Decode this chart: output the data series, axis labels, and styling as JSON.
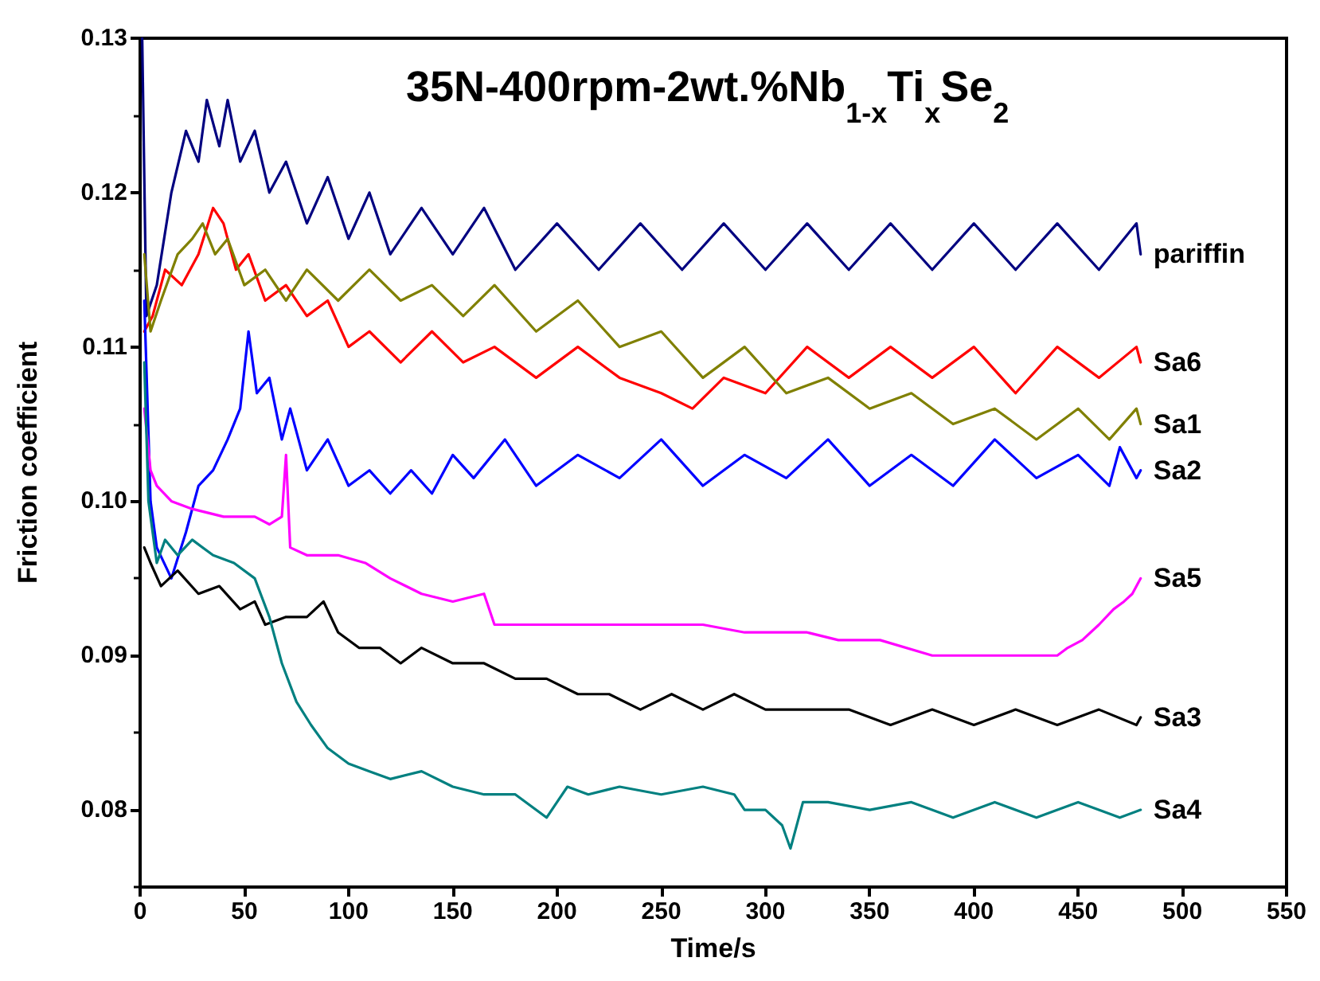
{
  "chart_data": {
    "type": "line",
    "title": "35N-400rpm-2wt.%Nb$_{1-x}$Ti$_{x}$Se$_{2}$",
    "xlabel": "Time/s",
    "ylabel": "Friction coefficient",
    "xlim": [
      0,
      550
    ],
    "xticks": [
      0,
      50,
      100,
      150,
      200,
      250,
      300,
      350,
      400,
      450,
      500,
      550
    ],
    "ylim": [
      0.075,
      0.13
    ],
    "yticks": [
      {
        "value": 0.08,
        "label": "0.08"
      },
      {
        "value": 0.09,
        "label": "0.09"
      },
      {
        "value": 0.1,
        "label": "0.10"
      },
      {
        "value": 0.11,
        "label": "0.11"
      },
      {
        "value": 0.12,
        "label": "0.12"
      },
      {
        "value": 0.13,
        "label": "0.13"
      }
    ],
    "grid": false,
    "legend": false,
    "line_style": "solid",
    "series": [
      {
        "name": "pariffin",
        "color": "#000080",
        "x": [
          1,
          3,
          8,
          15,
          22,
          28,
          32,
          38,
          42,
          48,
          55,
          62,
          70,
          80,
          90,
          100,
          110,
          120,
          135,
          150,
          165,
          180,
          200,
          220,
          240,
          260,
          280,
          300,
          320,
          340,
          360,
          380,
          400,
          420,
          440,
          460,
          478,
          480
        ],
        "values": [
          0.13,
          0.112,
          0.114,
          0.12,
          0.124,
          0.122,
          0.126,
          0.123,
          0.126,
          0.122,
          0.124,
          0.12,
          0.122,
          0.118,
          0.121,
          0.117,
          0.12,
          0.116,
          0.119,
          0.116,
          0.119,
          0.115,
          0.118,
          0.115,
          0.118,
          0.115,
          0.118,
          0.115,
          0.118,
          0.115,
          0.118,
          0.115,
          0.118,
          0.115,
          0.118,
          0.115,
          0.118,
          0.116
        ]
      },
      {
        "name": "Sa6",
        "color": "#ff0000",
        "x": [
          2,
          6,
          12,
          20,
          28,
          35,
          40,
          46,
          52,
          60,
          70,
          80,
          90,
          100,
          110,
          125,
          140,
          155,
          170,
          190,
          210,
          230,
          250,
          265,
          280,
          300,
          320,
          340,
          360,
          380,
          400,
          420,
          440,
          460,
          478,
          480
        ],
        "values": [
          0.111,
          0.112,
          0.115,
          0.114,
          0.116,
          0.119,
          0.118,
          0.115,
          0.116,
          0.113,
          0.114,
          0.112,
          0.113,
          0.11,
          0.111,
          0.109,
          0.111,
          0.109,
          0.11,
          0.108,
          0.11,
          0.108,
          0.107,
          0.106,
          0.108,
          0.107,
          0.11,
          0.108,
          0.11,
          0.108,
          0.11,
          0.107,
          0.11,
          0.108,
          0.11,
          0.109
        ]
      },
      {
        "name": "Sa1",
        "color": "#808000",
        "x": [
          2,
          5,
          10,
          18,
          25,
          30,
          36,
          42,
          50,
          60,
          70,
          80,
          95,
          110,
          125,
          140,
          155,
          170,
          190,
          210,
          230,
          250,
          270,
          290,
          310,
          330,
          350,
          370,
          390,
          410,
          430,
          450,
          465,
          478,
          480
        ],
        "values": [
          0.116,
          0.111,
          0.113,
          0.116,
          0.117,
          0.118,
          0.116,
          0.117,
          0.114,
          0.115,
          0.113,
          0.115,
          0.113,
          0.115,
          0.113,
          0.114,
          0.112,
          0.114,
          0.111,
          0.113,
          0.11,
          0.111,
          0.108,
          0.11,
          0.107,
          0.108,
          0.106,
          0.107,
          0.105,
          0.106,
          0.104,
          0.106,
          0.104,
          0.106,
          0.105
        ]
      },
      {
        "name": "Sa2",
        "color": "#0000ff",
        "x": [
          2,
          5,
          8,
          15,
          22,
          28,
          35,
          42,
          48,
          52,
          56,
          62,
          68,
          72,
          80,
          90,
          100,
          110,
          120,
          130,
          140,
          150,
          160,
          175,
          190,
          210,
          230,
          250,
          270,
          290,
          310,
          330,
          350,
          370,
          390,
          410,
          430,
          450,
          465,
          470,
          478,
          480
        ],
        "values": [
          0.113,
          0.1,
          0.097,
          0.095,
          0.098,
          0.101,
          0.102,
          0.104,
          0.106,
          0.111,
          0.107,
          0.108,
          0.104,
          0.106,
          0.102,
          0.104,
          0.101,
          0.102,
          0.1005,
          0.102,
          0.1005,
          0.103,
          0.1015,
          0.104,
          0.101,
          0.103,
          0.1015,
          0.104,
          0.101,
          0.103,
          0.1015,
          0.104,
          0.101,
          0.103,
          0.101,
          0.104,
          0.1015,
          0.103,
          0.101,
          0.1035,
          0.1015,
          0.102
        ]
      },
      {
        "name": "Sa5",
        "color": "#ff00ff",
        "x": [
          2,
          5,
          8,
          15,
          25,
          40,
          55,
          62,
          68,
          70,
          72,
          80,
          95,
          108,
          120,
          135,
          150,
          165,
          170,
          200,
          240,
          270,
          290,
          320,
          335,
          355,
          380,
          400,
          420,
          440,
          445,
          452,
          460,
          467,
          472,
          476,
          480
        ],
        "values": [
          0.106,
          0.102,
          0.101,
          0.1,
          0.0995,
          0.099,
          0.099,
          0.0985,
          0.099,
          0.103,
          0.097,
          0.0965,
          0.0965,
          0.096,
          0.095,
          0.094,
          0.0935,
          0.094,
          0.092,
          0.092,
          0.092,
          0.092,
          0.0915,
          0.0915,
          0.091,
          0.091,
          0.09,
          0.09,
          0.09,
          0.09,
          0.0905,
          0.091,
          0.092,
          0.093,
          0.0935,
          0.094,
          0.095
        ]
      },
      {
        "name": "Sa3",
        "color": "#000000",
        "x": [
          2,
          5,
          10,
          18,
          28,
          38,
          48,
          55,
          60,
          70,
          80,
          88,
          95,
          105,
          115,
          125,
          135,
          150,
          165,
          180,
          195,
          210,
          225,
          240,
          255,
          270,
          285,
          300,
          320,
          340,
          360,
          380,
          400,
          420,
          440,
          460,
          478,
          480
        ],
        "values": [
          0.097,
          0.096,
          0.0945,
          0.0955,
          0.094,
          0.0945,
          0.093,
          0.0935,
          0.092,
          0.0925,
          0.0925,
          0.0935,
          0.0915,
          0.0905,
          0.0905,
          0.0895,
          0.0905,
          0.0895,
          0.0895,
          0.0885,
          0.0885,
          0.0875,
          0.0875,
          0.0865,
          0.0875,
          0.0865,
          0.0875,
          0.0865,
          0.0865,
          0.0865,
          0.0855,
          0.0865,
          0.0855,
          0.0865,
          0.0855,
          0.0865,
          0.0855,
          0.086
        ]
      },
      {
        "name": "Sa4",
        "color": "#008080",
        "x": [
          2,
          4,
          8,
          12,
          18,
          25,
          35,
          45,
          55,
          62,
          68,
          75,
          82,
          90,
          100,
          110,
          120,
          135,
          150,
          165,
          180,
          195,
          200,
          205,
          215,
          230,
          250,
          270,
          285,
          290,
          300,
          308,
          312,
          318,
          330,
          350,
          370,
          390,
          410,
          430,
          450,
          470,
          480
        ],
        "values": [
          0.109,
          0.1,
          0.096,
          0.0975,
          0.0965,
          0.0975,
          0.0965,
          0.096,
          0.095,
          0.0925,
          0.0895,
          0.087,
          0.0855,
          0.084,
          0.083,
          0.0825,
          0.082,
          0.0825,
          0.0815,
          0.081,
          0.081,
          0.0795,
          0.0805,
          0.0815,
          0.081,
          0.0815,
          0.081,
          0.0815,
          0.081,
          0.08,
          0.08,
          0.079,
          0.0775,
          0.0805,
          0.0805,
          0.08,
          0.0805,
          0.0795,
          0.0805,
          0.0795,
          0.0805,
          0.0795,
          0.08
        ]
      }
    ]
  }
}
